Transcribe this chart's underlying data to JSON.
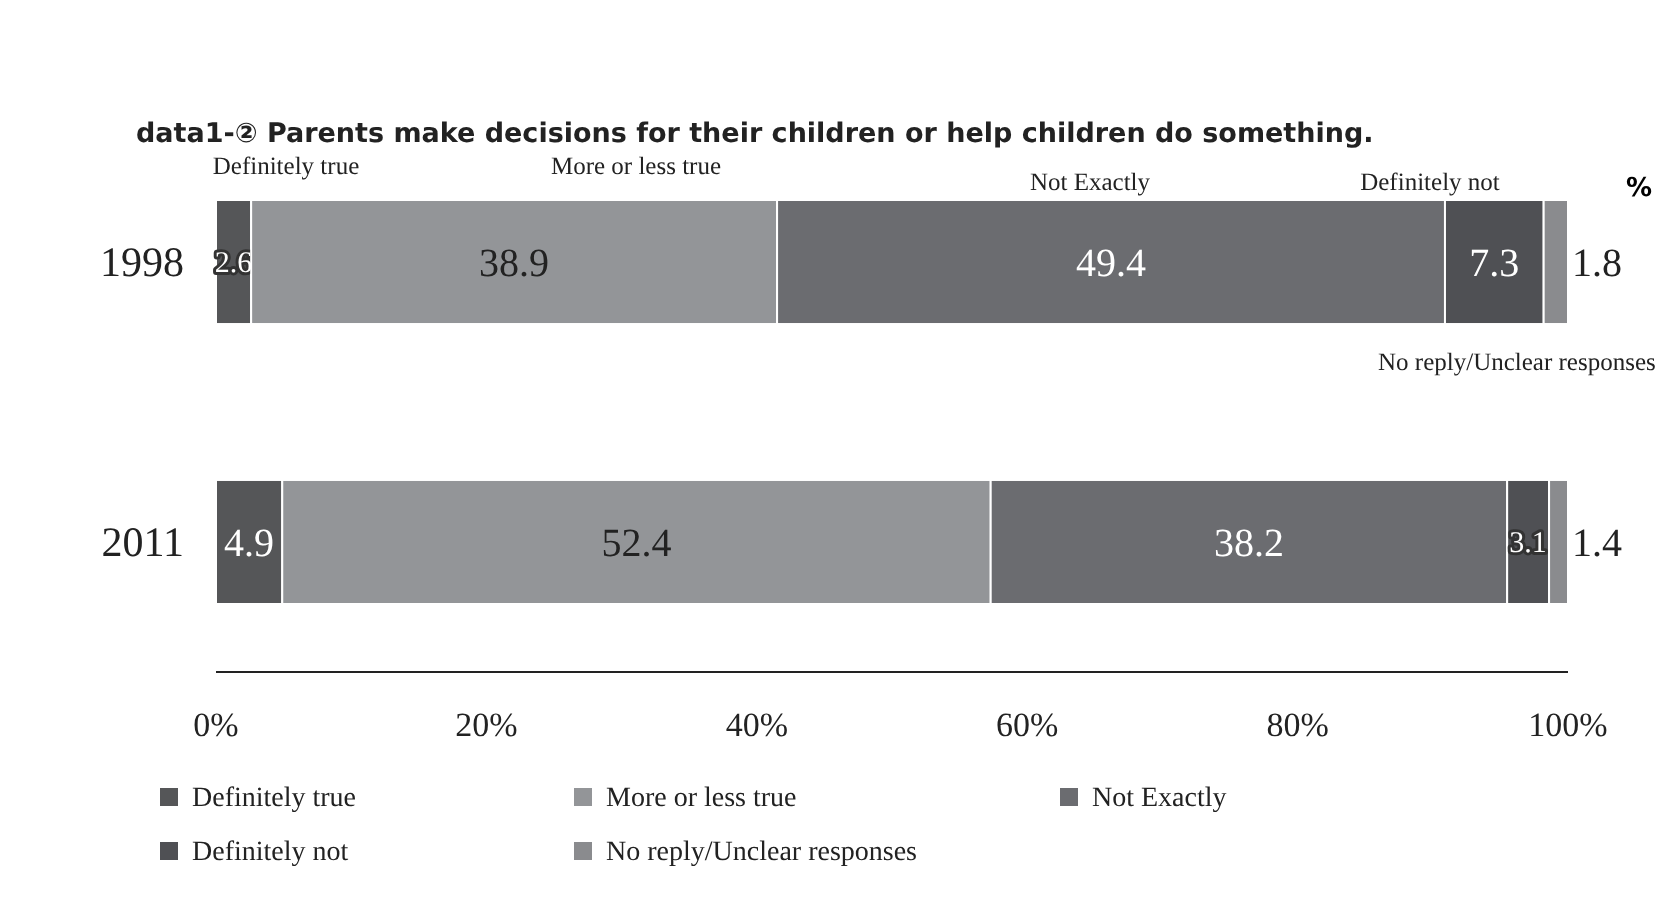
{
  "chart_data": {
    "type": "bar",
    "orientation": "horizontal",
    "stacked": true,
    "title": "data1-② Parents make decisions for their children or help children do something.",
    "xlabel": "%",
    "categories": [
      "1998",
      "2011"
    ],
    "series": [
      {
        "name": "Definitely true",
        "color": "#555658",
        "values": [
          2.6,
          4.9
        ]
      },
      {
        "name": "More or less true",
        "color": "#939598",
        "values": [
          38.9,
          52.4
        ]
      },
      {
        "name": "Not Exactly",
        "color": "#6b6c70",
        "values": [
          49.4,
          38.2
        ]
      },
      {
        "name": "Definitely not",
        "color": "#4f5054",
        "values": [
          7.3,
          3.1
        ]
      },
      {
        "name": "No reply/Unclear responses",
        "color": "#8a8b8e",
        "values": [
          1.8,
          1.4
        ]
      }
    ],
    "xlim": [
      0,
      100
    ],
    "xticks": [
      {
        "value": 0,
        "label": "0%"
      },
      {
        "value": 20,
        "label": "20%"
      },
      {
        "value": 40,
        "label": "40%"
      },
      {
        "value": 60,
        "label": "60%"
      },
      {
        "value": 80,
        "label": "80%"
      },
      {
        "value": 100,
        "label": "100%"
      }
    ],
    "annotations": [
      "Definitely true",
      "More or less true",
      "Not Exactly",
      "Definitely not",
      "No reply/Unclear responses"
    ],
    "data_labels": true,
    "grid": false,
    "legend": "bottom"
  }
}
